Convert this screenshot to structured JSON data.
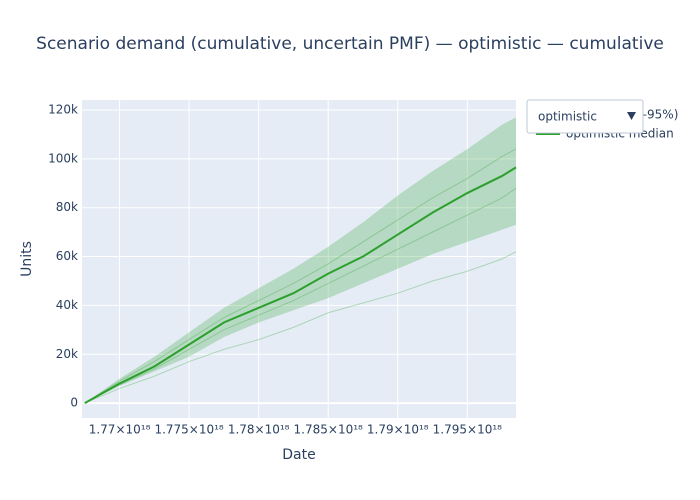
{
  "chart_data": {
    "type": "line",
    "title": "Scenario demand (cumulative, uncertain PMF) — optimistic — cumulative",
    "x_label": "Date",
    "y_label": "Units",
    "x": [
      1.7675e+18,
      1.77e+18,
      1.7725e+18,
      1.775e+18,
      1.7775e+18,
      1.78e+18,
      1.7825e+18,
      1.785e+18,
      1.7875e+18,
      1.79e+18,
      1.7925e+18,
      1.795e+18,
      1.7975e+18,
      1.7985e+18
    ],
    "band": {
      "name": "optimistic (5–95%)",
      "color": "rgba(44,160,44,0.25)",
      "upper": [
        0,
        10000,
        19000,
        29000,
        39000,
        47000,
        55000,
        64000,
        74000,
        85000,
        95000,
        104000,
        114000,
        117000
      ],
      "lower": [
        0,
        7000,
        13000,
        19000,
        27000,
        33000,
        38000,
        43000,
        49000,
        55000,
        61000,
        66000,
        71000,
        73000
      ]
    },
    "series": [
      {
        "name": "optimistic median",
        "color": "#2ca02c",
        "values": [
          0,
          8000,
          15000,
          24000,
          33000,
          39000,
          45000,
          53000,
          60000,
          69000,
          78000,
          86000,
          93000,
          96500
        ]
      },
      {
        "color": "rgba(44,160,44,0.3)",
        "values": [
          0,
          7500,
          14000,
          22000,
          30000,
          36000,
          42000,
          49000,
          56000,
          63000,
          70000,
          77000,
          84000,
          88000
        ]
      },
      {
        "color": "rgba(44,160,44,0.3)",
        "values": [
          0,
          9000,
          17000,
          26000,
          35000,
          42000,
          49000,
          57000,
          66000,
          75000,
          84000,
          92000,
          101000,
          104000
        ]
      },
      {
        "color": "rgba(44,160,44,0.3)",
        "values": [
          0,
          6000,
          11000,
          17000,
          22000,
          26000,
          31000,
          37000,
          41000,
          45000,
          50000,
          54000,
          59000,
          62000
        ]
      }
    ],
    "xlim": [
      1.7673e+18,
      1.7985e+18
    ],
    "ylim": [
      -6100,
      124100
    ],
    "xticks": [
      {
        "value": 1.77e+18,
        "label": "1.77×10¹⁸"
      },
      {
        "value": 1.775e+18,
        "label": "1.775×10¹⁸"
      },
      {
        "value": 1.78e+18,
        "label": "1.78×10¹⁸"
      },
      {
        "value": 1.785e+18,
        "label": "1.785×10¹⁸"
      },
      {
        "value": 1.79e+18,
        "label": "1.79×10¹⁸"
      },
      {
        "value": 1.795e+18,
        "label": "1.795×10¹⁸"
      }
    ],
    "yticks": [
      0,
      {
        "value": 20000,
        "label": "20k"
      },
      {
        "value": 40000,
        "label": "40k"
      },
      {
        "value": 60000,
        "label": "60k"
      },
      {
        "value": 80000,
        "label": "80k"
      },
      {
        "value": 100000,
        "label": "100k"
      },
      {
        "value": 120000,
        "label": "120k"
      }
    ],
    "grid": true,
    "dropdown": {
      "label": "optimistic"
    }
  }
}
